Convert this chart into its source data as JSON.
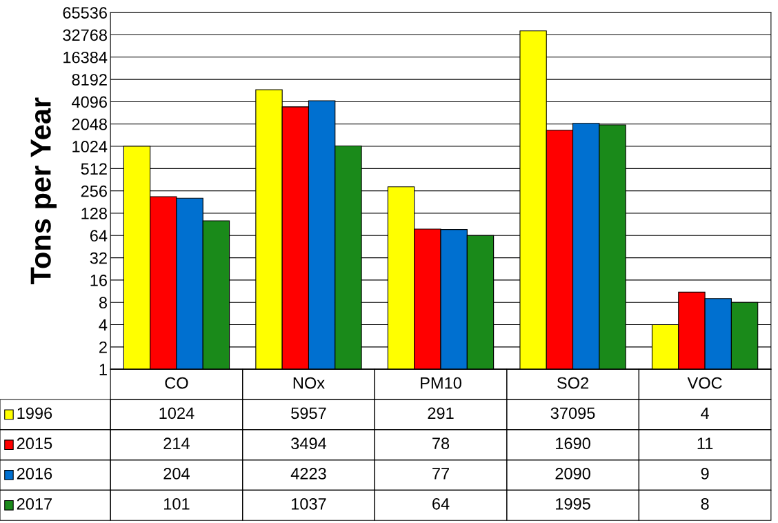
{
  "chart_data": {
    "type": "bar",
    "ylabel": "Tons per Year",
    "categories": [
      "CO",
      "NOx",
      "PM10",
      "SO2",
      "VOC"
    ],
    "series": [
      {
        "name": "1996",
        "color": "#ffff00",
        "values": [
          1024,
          5957,
          291,
          37095,
          4
        ]
      },
      {
        "name": "2015",
        "color": "#ff0000",
        "values": [
          214,
          3494,
          78,
          1690,
          11
        ]
      },
      {
        "name": "2016",
        "color": "#0070d0",
        "values": [
          204,
          4223,
          77,
          2090,
          9
        ]
      },
      {
        "name": "2017",
        "color": "#1a8a1a",
        "values": [
          101,
          1037,
          64,
          1995,
          8
        ]
      }
    ],
    "log": "y",
    "ylim": [
      1,
      65536
    ],
    "yticks": [
      1,
      2,
      4,
      8,
      16,
      32,
      64,
      128,
      256,
      512,
      1024,
      2048,
      4096,
      8192,
      16384,
      32768,
      65536
    ],
    "grid": "y",
    "legend": "bottom",
    "data_labels": true
  }
}
